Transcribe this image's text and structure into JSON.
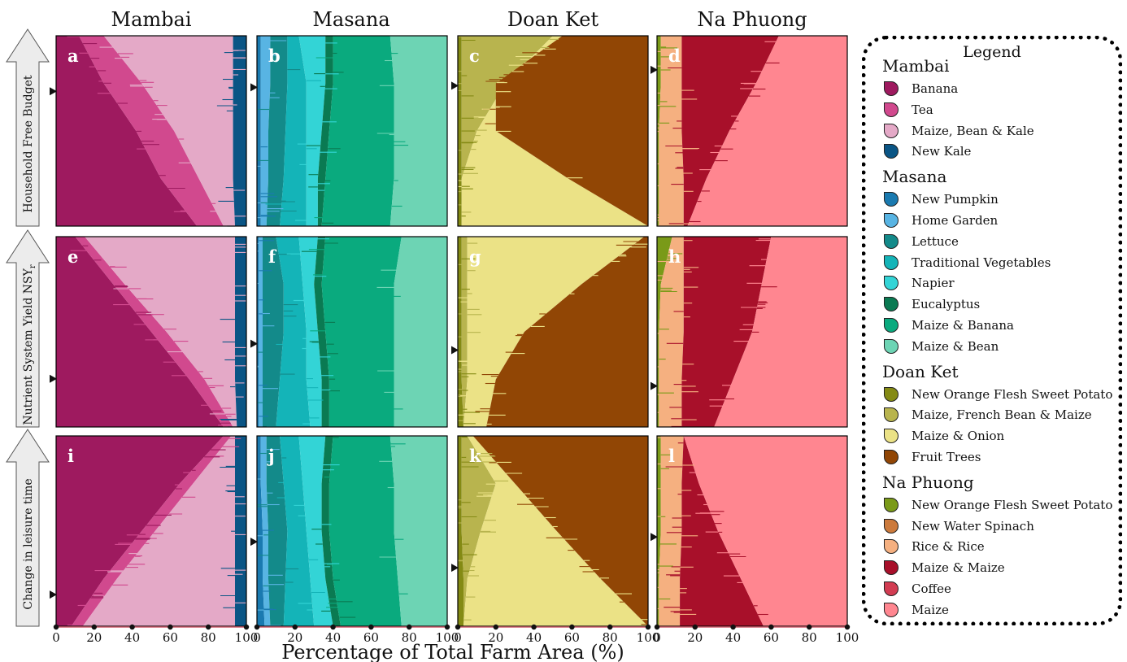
{
  "figure": {
    "column_titles": [
      "Mambai",
      "Masana",
      "Doan Ket",
      "Na Phuong"
    ],
    "row_titles": [
      "Household Free Budget",
      "Nutrient System Yield NSY",
      "Change in leisure time"
    ],
    "row_subscripts": [
      "",
      "r",
      ""
    ],
    "xlabel": "Percentage of Total Farm Area (%)",
    "x_ticks": [
      "0",
      "20",
      "40",
      "60",
      "80",
      "100"
    ],
    "legend": {
      "title": "Legend",
      "groups": [
        {
          "name": "Mambai",
          "items": [
            {
              "label": "Banana",
              "color": "#9e1a5f"
            },
            {
              "label": "Tea",
              "color": "#d1498e"
            },
            {
              "label": "Maize, Bean & Kale",
              "color": "#e4a9c7"
            },
            {
              "label": "New Kale",
              "color": "#0a5585"
            }
          ]
        },
        {
          "name": "Masana",
          "items": [
            {
              "label": "New Pumpkin",
              "color": "#1a7ab0"
            },
            {
              "label": "Home Garden",
              "color": "#58b4e3"
            },
            {
              "label": "Lettuce",
              "color": "#138a8a"
            },
            {
              "label": "Traditional Vegetables",
              "color": "#14b4b8"
            },
            {
              "label": "Napier",
              "color": "#33d4d6"
            },
            {
              "label": "Eucalyptus",
              "color": "#0a7a52"
            },
            {
              "label": "Maize & Banana",
              "color": "#0aaa7e"
            },
            {
              "label": "Maize & Bean",
              "color": "#6dd4b4"
            }
          ]
        },
        {
          "name": "Doan Ket",
          "items": [
            {
              "label": "New Orange Flesh Sweet Potato",
              "color": "#848a14"
            },
            {
              "label": "Maize, French Bean & Maize",
              "color": "#b8b44e"
            },
            {
              "label": "Maize & Onion",
              "color": "#ebe286"
            },
            {
              "label": "Fruit Trees",
              "color": "#914605"
            }
          ]
        },
        {
          "name": "Na Phuong",
          "items": [
            {
              "label": "New Orange Flesh Sweet Potato",
              "color": "#7a9a18"
            },
            {
              "label": "New Water Spinach",
              "color": "#cc7a3c"
            },
            {
              "label": "Rice & Rice",
              "color": "#f5b080"
            },
            {
              "label": "Maize & Maize",
              "color": "#a8102a"
            },
            {
              "label": "Coffee",
              "color": "#d23c52"
            },
            {
              "label": "Maize",
              "color": "#ff8690"
            }
          ]
        }
      ]
    }
  },
  "chart_data": [
    {
      "type": "area",
      "panel": "a",
      "region": "Mambai",
      "objective": "Household Free Budget",
      "y": [
        0,
        0.25,
        0.5,
        0.75,
        1
      ],
      "stack_x_max": {
        "Banana": [
          74,
          55,
          42,
          25,
          12
        ],
        "Tea": [
          88,
          75,
          62,
          45,
          25
        ],
        "Maize, Bean & Kale": [
          94,
          93,
          93,
          93,
          93
        ],
        "New Kale": [
          100,
          100,
          100,
          100,
          100
        ]
      }
    },
    {
      "type": "area",
      "panel": "b",
      "region": "Masana",
      "objective": "Household Free Budget",
      "y": [
        0,
        0.25,
        0.5,
        0.75,
        1
      ],
      "stack_x_max": {
        "New Pumpkin": [
          2,
          2,
          2,
          2,
          2
        ],
        "Home Garden": [
          5,
          6,
          6,
          7,
          7
        ],
        "Lettuce": [
          12,
          14,
          15,
          16,
          16
        ],
        "Traditional Vegetables": [
          26,
          26,
          26,
          26,
          22
        ],
        "Napier": [
          32,
          32,
          34,
          36,
          36
        ],
        "Eucalyptus": [
          34,
          36,
          38,
          40,
          40
        ],
        "Maize & Banana": [
          70,
          72,
          72,
          72,
          70
        ],
        "Maize & Bean": [
          100,
          100,
          100,
          100,
          100
        ]
      }
    },
    {
      "type": "area",
      "panel": "c",
      "region": "Doan Ket",
      "objective": "Household Free Budget",
      "y": [
        0,
        0.25,
        0.5,
        0.75,
        1
      ],
      "stack_x_max": {
        "New Orange Flesh Sweet Potato": [
          2,
          2,
          2,
          2,
          2
        ],
        "Maize, French Bean & Maize": [
          2,
          2,
          10,
          25,
          50
        ],
        "Maize & Onion": [
          100,
          58,
          20,
          20,
          55
        ],
        "Fruit Trees": [
          100,
          100,
          100,
          100,
          100
        ]
      }
    },
    {
      "type": "area",
      "panel": "d",
      "region": "Na Phuong",
      "objective": "Household Free Budget",
      "y": [
        0,
        0.25,
        0.5,
        0.75,
        1
      ],
      "stack_x_max": {
        "New Orange Flesh Sweet Potato": [
          1,
          1,
          1,
          2,
          2
        ],
        "Rice & Rice": [
          14,
          14,
          13,
          13,
          13
        ],
        "Maize & Maize": [
          16,
          26,
          38,
          52,
          64
        ],
        "Maize": [
          100,
          100,
          100,
          100,
          100
        ]
      }
    },
    {
      "type": "area",
      "panel": "e",
      "region": "Mambai",
      "objective": "Nutrient System Yield NSY",
      "y": [
        0,
        0.25,
        0.5,
        0.75,
        1
      ],
      "stack_x_max": {
        "Banana": [
          88,
          70,
          50,
          30,
          10
        ],
        "Tea": [
          93,
          78,
          58,
          36,
          15
        ],
        "Maize, Bean & Kale": [
          95,
          94,
          94,
          94,
          94
        ],
        "New Kale": [
          100,
          100,
          100,
          100,
          100
        ]
      }
    },
    {
      "type": "area",
      "panel": "f",
      "region": "Masana",
      "objective": "Nutrient System Yield NSY",
      "y": [
        0,
        0.25,
        0.5,
        0.75,
        1
      ],
      "stack_x_max": {
        "New Pumpkin": [
          1,
          1,
          1,
          1,
          1
        ],
        "Home Garden": [
          3,
          3,
          3,
          3,
          3
        ],
        "Lettuce": [
          10,
          12,
          14,
          14,
          10
        ],
        "Traditional Vegetables": [
          28,
          26,
          26,
          24,
          22
        ],
        "Napier": [
          34,
          34,
          32,
          30,
          32
        ],
        "Eucalyptus": [
          38,
          38,
          36,
          34,
          36
        ],
        "Maize & Banana": [
          72,
          72,
          72,
          72,
          76
        ],
        "Maize & Bean": [
          100,
          100,
          100,
          100,
          100
        ]
      }
    },
    {
      "type": "area",
      "panel": "g",
      "region": "Doan Ket",
      "objective": "Nutrient System Yield NSY",
      "y": [
        0,
        0.25,
        0.5,
        0.75,
        1
      ],
      "stack_x_max": {
        "New Orange Flesh Sweet Potato": [
          3,
          2,
          2,
          2,
          2
        ],
        "Maize, French Bean & Maize": [
          3,
          5,
          5,
          5,
          5
        ],
        "Maize & Onion": [
          15,
          20,
          35,
          65,
          98
        ],
        "Fruit Trees": [
          100,
          100,
          100,
          100,
          100
        ]
      }
    },
    {
      "type": "area",
      "panel": "h",
      "region": "Na Phuong",
      "objective": "Nutrient System Yield NSY",
      "y": [
        0,
        0.25,
        0.5,
        0.75,
        1
      ],
      "stack_x_max": {
        "New Orange Flesh Sweet Potato": [
          1,
          1,
          1,
          2,
          8
        ],
        "Rice & Rice": [
          13,
          13,
          14,
          14,
          14
        ],
        "Maize & Maize": [
          30,
          40,
          50,
          55,
          60
        ],
        "Maize": [
          100,
          100,
          100,
          100,
          100
        ]
      }
    },
    {
      "type": "area",
      "panel": "i",
      "region": "Mambai",
      "objective": "Change in leisure time",
      "y": [
        0,
        0.25,
        0.5,
        0.75,
        1
      ],
      "stack_x_max": {
        "Banana": [
          8,
          25,
          45,
          65,
          88
        ],
        "Tea": [
          14,
          32,
          52,
          72,
          92
        ],
        "Maize, Bean & Kale": [
          94,
          94,
          94,
          94,
          94
        ],
        "New Kale": [
          100,
          100,
          100,
          100,
          100
        ]
      }
    },
    {
      "type": "area",
      "panel": "j",
      "region": "Masana",
      "objective": "Change in leisure time",
      "y": [
        0,
        0.25,
        0.5,
        0.75,
        1
      ],
      "stack_x_max": {
        "New Pumpkin": [
          4,
          3,
          3,
          2,
          2
        ],
        "Home Garden": [
          7,
          6,
          6,
          5,
          5
        ],
        "Lettuce": [
          14,
          15,
          16,
          14,
          12
        ],
        "Traditional Vegetables": [
          30,
          28,
          26,
          24,
          22
        ],
        "Napier": [
          40,
          36,
          34,
          34,
          36
        ],
        "Eucalyptus": [
          44,
          40,
          38,
          38,
          40
        ],
        "Maize & Banana": [
          76,
          74,
          72,
          72,
          70
        ],
        "Maize & Bean": [
          100,
          100,
          100,
          100,
          100
        ]
      }
    },
    {
      "type": "area",
      "panel": "k",
      "region": "Doan Ket",
      "objective": "Change in leisure time",
      "y": [
        0,
        0.25,
        0.5,
        0.75,
        1
      ],
      "stack_x_max": {
        "New Orange Flesh Sweet Potato": [
          3,
          3,
          2,
          2,
          2
        ],
        "Maize, French Bean & Maize": [
          3,
          5,
          12,
          20,
          5
        ],
        "Maize & Onion": [
          100,
          75,
          52,
          30,
          8
        ],
        "Fruit Trees": [
          100,
          100,
          100,
          100,
          100
        ]
      }
    },
    {
      "type": "area",
      "panel": "l",
      "region": "Na Phuong",
      "objective": "Change in leisure time",
      "y": [
        0,
        0.25,
        0.5,
        0.75,
        1
      ],
      "stack_x_max": {
        "New Orange Flesh Sweet Potato": [
          1,
          1,
          2,
          2,
          2
        ],
        "Rice & Rice": [
          12,
          12,
          13,
          13,
          14
        ],
        "Maize & Maize": [
          56,
          44,
          32,
          22,
          14
        ],
        "Maize": [
          100,
          100,
          100,
          100,
          100
        ]
      }
    }
  ]
}
